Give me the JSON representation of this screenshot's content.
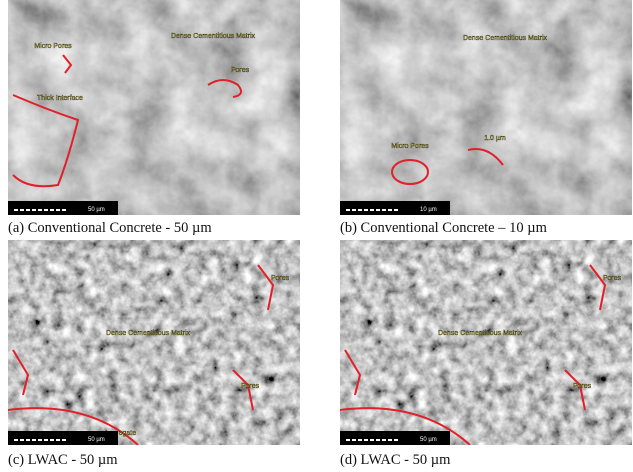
{
  "panels": [
    {
      "caption": "(a) Conventional Concrete - 50 µm",
      "scale_bar": "50 µm",
      "annotations": [
        "Micro Pores",
        "Dense Cementitious Matrix",
        "Pores",
        "Thick Interface"
      ]
    },
    {
      "caption": "(b) Conventional Concrete – 10 µm",
      "scale_bar": "10 µm",
      "annotations": [
        "Dense Cementitious Matrix",
        "Micro Pores",
        "1.0 µm"
      ]
    },
    {
      "caption": "(c) LWAC - 50 µm",
      "scale_bar": "50 µm",
      "annotations": [
        "Dense Cementitious Matrix",
        "Pores",
        "Pores",
        "Aggregate"
      ]
    },
    {
      "caption": "(d) LWAC - 50 µm",
      "scale_bar": "50 µm",
      "annotations": [
        "Dense Cementitious Matrix",
        "Pores",
        "Pores"
      ]
    }
  ]
}
